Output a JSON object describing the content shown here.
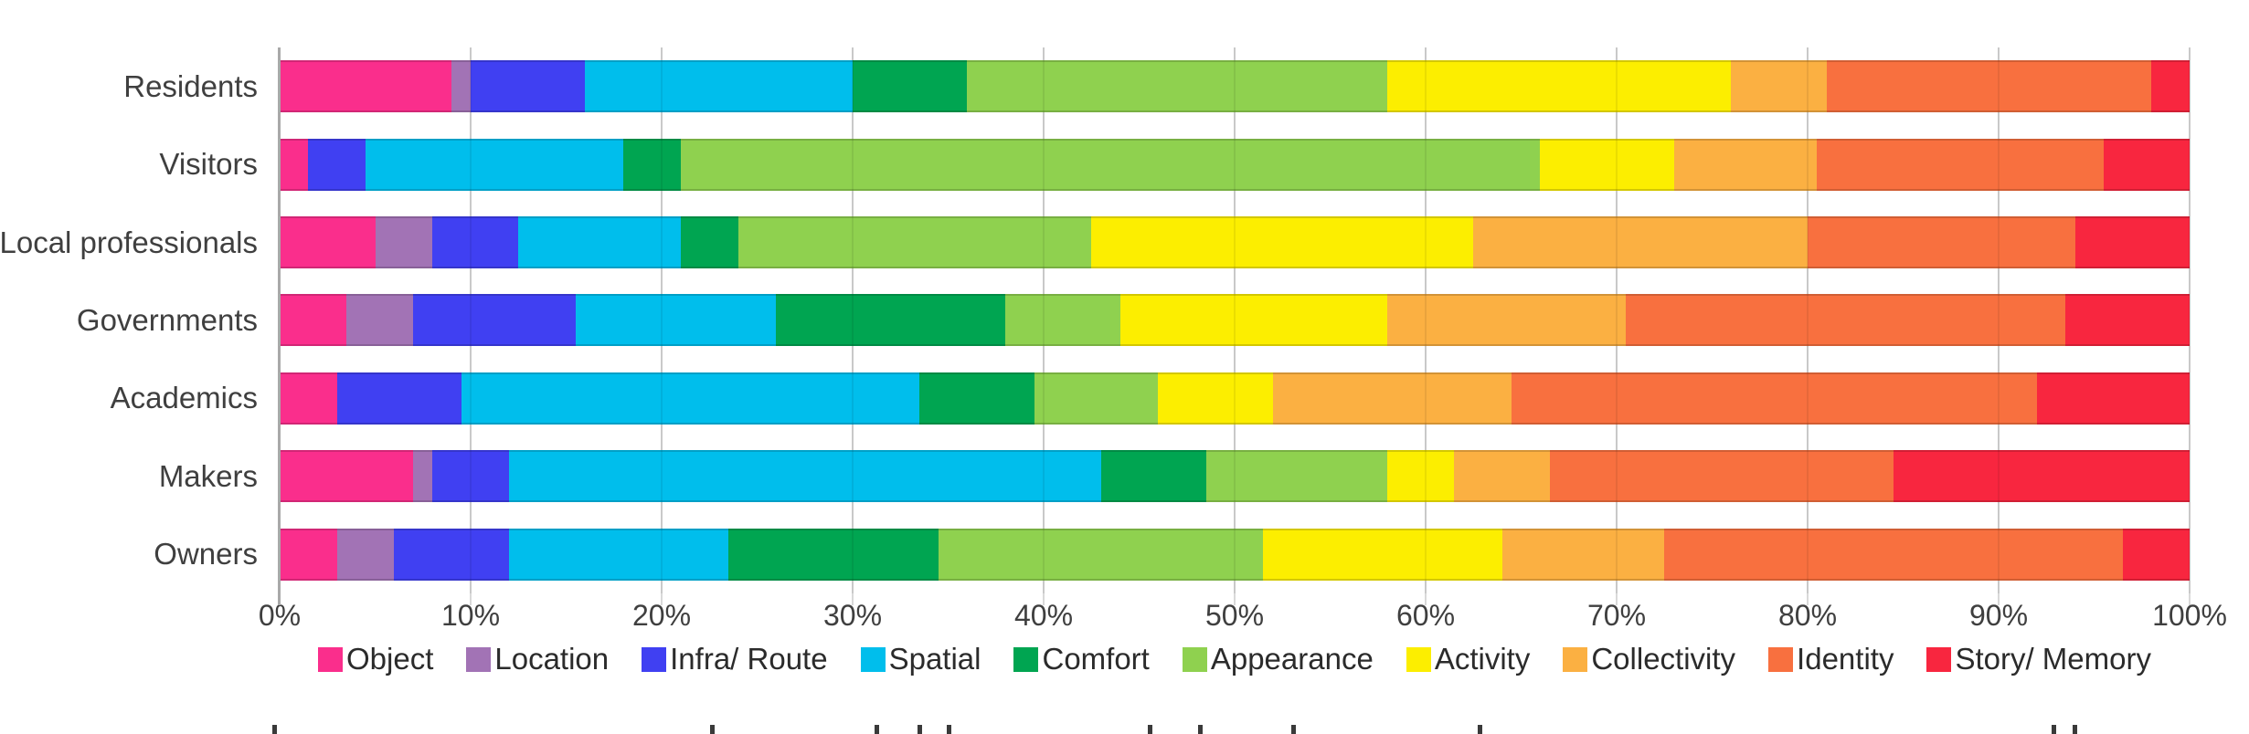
{
  "chart_data": {
    "type": "bar",
    "orientation": "horizontal",
    "stacked": true,
    "unit": "percent",
    "title": "",
    "categories": [
      "Residents",
      "Visitors",
      "Local professionals",
      "Governments",
      "Academics",
      "Makers",
      "Owners"
    ],
    "series": [
      {
        "name": "Object",
        "color": "#FA2E8C",
        "values": [
          9,
          1.5,
          5,
          3.5,
          3,
          7,
          3
        ]
      },
      {
        "name": "Location",
        "color": "#A273B5",
        "values": [
          1,
          0,
          3,
          3.5,
          0,
          1,
          3
        ]
      },
      {
        "name": "Infra/ Route",
        "color": "#4040F2",
        "values": [
          6,
          3,
          4.5,
          8.5,
          6.5,
          4,
          6
        ]
      },
      {
        "name": "Spatial",
        "color": "#00BEEC",
        "values": [
          14,
          13.5,
          8.5,
          10.5,
          24,
          31,
          11.5
        ]
      },
      {
        "name": "Comfort",
        "color": "#00A551",
        "values": [
          6,
          3,
          3,
          12,
          6,
          5.5,
          11
        ]
      },
      {
        "name": "Appearance",
        "color": "#8FD14F",
        "values": [
          22,
          45,
          18.5,
          6,
          6.5,
          9.5,
          17
        ]
      },
      {
        "name": "Activity",
        "color": "#FCEE00",
        "values": [
          18,
          7,
          20,
          14,
          6,
          3.5,
          12.5
        ]
      },
      {
        "name": "Collectivity",
        "color": "#FBB042",
        "values": [
          5,
          7.5,
          17.5,
          12.5,
          12.5,
          5,
          8.5
        ]
      },
      {
        "name": "Identity",
        "color": "#F8703F",
        "values": [
          17,
          15,
          14,
          23,
          27.5,
          18,
          24
        ]
      },
      {
        "name": "Story/ Memory",
        "color": "#F8263F",
        "values": [
          2,
          4.5,
          6,
          6.5,
          8,
          15.5,
          3.5
        ]
      }
    ],
    "x_axis": {
      "min": 0,
      "max": 100,
      "tick_step": 10,
      "tick_labels": [
        "0%",
        "10%",
        "20%",
        "30%",
        "40%",
        "50%",
        "60%",
        "70%",
        "80%",
        "90%",
        "100%"
      ],
      "grid": true
    },
    "legend_position": "bottom",
    "colors": {
      "axis_text": "#3f3f3f",
      "gridline": "#d9d9d9",
      "axis_line": "#a9a9a9",
      "background": "#ffffff"
    }
  }
}
